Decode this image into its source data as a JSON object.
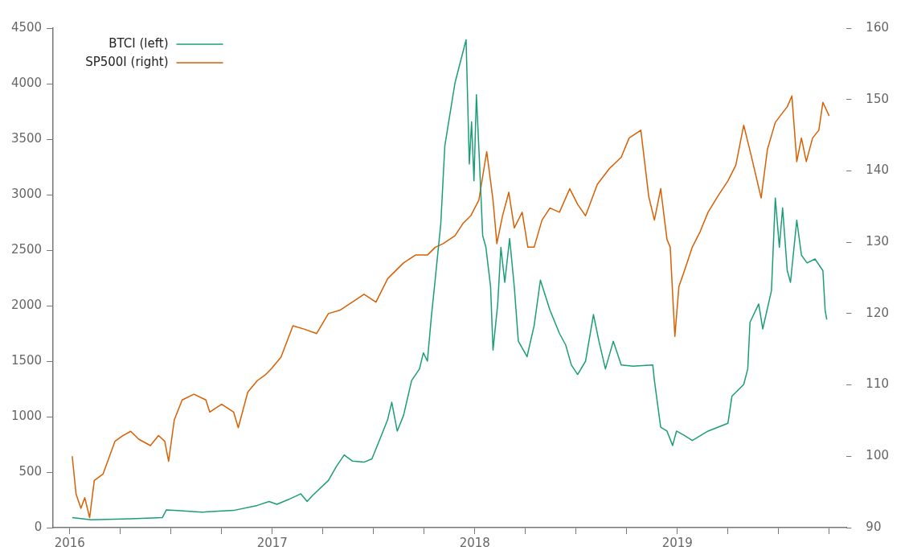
{
  "chart_data": {
    "type": "line",
    "xlim": [
      2015.918,
      2019.836
    ],
    "xticks": [
      2016,
      {
        "value": 2016.25,
        "label": null
      },
      {
        "value": 2016.5,
        "label": null
      },
      {
        "value": 2016.75,
        "label": null
      },
      2017,
      {
        "value": 2017.25,
        "label": null
      },
      {
        "value": 2017.5,
        "label": null
      },
      {
        "value": 2017.75,
        "label": null
      },
      2018,
      {
        "value": 2018.25,
        "label": null
      },
      {
        "value": 2018.5,
        "label": null
      },
      {
        "value": 2018.75,
        "label": null
      },
      2019,
      {
        "value": 2019.25,
        "label": null
      },
      {
        "value": 2019.5,
        "label": null
      },
      {
        "value": 2019.75,
        "label": null
      }
    ],
    "ylim": [
      0,
      4500
    ],
    "yticks": [
      0,
      500,
      1000,
      1500,
      2000,
      2500,
      3000,
      3500,
      4000,
      4500
    ],
    "y2lim": [
      90,
      160
    ],
    "y2ticks": [
      90,
      100,
      110,
      120,
      130,
      140,
      150,
      160
    ],
    "grid": false,
    "legend": "top left",
    "marker": "none",
    "line_style": "solid",
    "series": [
      {
        "name": "BTCI (left)",
        "color": "#1b9e77",
        "x": [
          2016.012,
          2016.105,
          2016.301,
          2016.457,
          2016.477,
          2016.516,
          2016.652,
          2016.809,
          2016.926,
          2016.984,
          2017.023,
          2017.082,
          2017.141,
          2017.172,
          2017.199,
          2017.277,
          2017.316,
          2017.355,
          2017.395,
          2017.453,
          2017.492,
          2017.531,
          2017.57,
          2017.59,
          2017.617,
          2017.648,
          2017.688,
          2017.727,
          2017.746,
          2017.766,
          2017.785,
          2017.805,
          2017.832,
          2017.852,
          2017.902,
          2017.957,
          2017.973,
          2017.984,
          2017.996,
          2018.008,
          2018.023,
          2018.039,
          2018.055,
          2018.078,
          2018.09,
          2018.113,
          2018.129,
          2018.148,
          2018.172,
          2018.195,
          2018.215,
          2018.258,
          2018.293,
          2018.324,
          2018.371,
          2018.418,
          2018.449,
          2018.477,
          2018.508,
          2018.547,
          2018.586,
          2018.613,
          2018.645,
          2018.684,
          2018.723,
          2018.781,
          2018.879,
          2018.887,
          2018.918,
          2018.949,
          2018.977,
          2018.996,
          2019.035,
          2019.074,
          2019.152,
          2019.25,
          2019.27,
          2019.328,
          2019.348,
          2019.359,
          2019.402,
          2019.422,
          2019.465,
          2019.484,
          2019.504,
          2019.52,
          2019.543,
          2019.559,
          2019.59,
          2019.613,
          2019.641,
          2019.68,
          2019.719,
          2019.73,
          2019.738
        ],
        "values": [
          90,
          70,
          80,
          90,
          160,
          155,
          140,
          155,
          200,
          235,
          210,
          255,
          305,
          235,
          290,
          425,
          550,
          655,
          600,
          590,
          620,
          795,
          975,
          1130,
          870,
          1010,
          1325,
          1430,
          1575,
          1500,
          1890,
          2245,
          2735,
          3440,
          4005,
          4395,
          3275,
          3655,
          3125,
          3900,
          3300,
          2630,
          2525,
          2170,
          1600,
          2010,
          2525,
          2210,
          2605,
          2170,
          1680,
          1540,
          1820,
          2230,
          1960,
          1750,
          1645,
          1465,
          1380,
          1500,
          1920,
          1680,
          1430,
          1680,
          1465,
          1455,
          1465,
          1325,
          905,
          870,
          740,
          870,
          830,
          785,
          870,
          940,
          1185,
          1290,
          1430,
          1850,
          2015,
          1790,
          2135,
          2970,
          2525,
          2880,
          2315,
          2210,
          2770,
          2455,
          2385,
          2420,
          2315,
          1960,
          1875
        ]
      },
      {
        "name": "SP500I (right)",
        "color": "#d95f02",
        "axis": "y2",
        "x": [
          2016.012,
          2016.031,
          2016.055,
          2016.074,
          2016.098,
          2016.121,
          2016.164,
          2016.223,
          2016.262,
          2016.301,
          2016.34,
          2016.398,
          2016.438,
          2016.469,
          2016.488,
          2016.516,
          2016.555,
          2016.613,
          2016.672,
          2016.691,
          2016.75,
          2016.809,
          2016.832,
          2016.879,
          2016.926,
          2016.965,
          2016.996,
          2017.043,
          2017.102,
          2017.16,
          2017.219,
          2017.277,
          2017.336,
          2017.395,
          2017.453,
          2017.512,
          2017.57,
          2017.648,
          2017.707,
          2017.766,
          2017.805,
          2017.844,
          2017.902,
          2017.941,
          2017.98,
          2018.02,
          2018.059,
          2018.09,
          2018.109,
          2018.137,
          2018.168,
          2018.195,
          2018.234,
          2018.262,
          2018.293,
          2018.332,
          2018.371,
          2018.418,
          2018.469,
          2018.508,
          2018.547,
          2018.605,
          2018.664,
          2018.723,
          2018.762,
          2018.82,
          2018.859,
          2018.887,
          2018.918,
          2018.949,
          2018.965,
          2018.988,
          2019.008,
          2019.035,
          2019.074,
          2019.113,
          2019.152,
          2019.199,
          2019.25,
          2019.289,
          2019.328,
          2019.367,
          2019.414,
          2019.445,
          2019.484,
          2019.543,
          2019.566,
          2019.59,
          2019.613,
          2019.637,
          2019.668,
          2019.699,
          2019.719,
          2019.75
        ],
        "values": [
          100.0,
          94.7,
          92.7,
          94.2,
          91.4,
          96.6,
          97.5,
          102.1,
          102.9,
          103.5,
          102.4,
          101.5,
          102.9,
          102.1,
          99.3,
          105.1,
          107.9,
          108.7,
          107.9,
          106.2,
          107.3,
          106.2,
          104.0,
          109.0,
          110.6,
          111.4,
          112.3,
          113.9,
          118.3,
          117.8,
          117.2,
          120.0,
          120.5,
          121.6,
          122.7,
          121.6,
          124.9,
          127.1,
          128.2,
          128.2,
          129.3,
          129.8,
          130.9,
          132.6,
          133.7,
          135.9,
          142.7,
          135.9,
          129.8,
          133.7,
          137.0,
          132.0,
          134.2,
          129.3,
          129.3,
          133.1,
          134.8,
          134.2,
          137.5,
          135.3,
          133.7,
          138.1,
          140.3,
          141.9,
          144.6,
          145.7,
          136.4,
          133.1,
          137.5,
          130.4,
          129.3,
          116.8,
          123.8,
          126.0,
          129.3,
          131.5,
          134.2,
          136.4,
          138.6,
          140.8,
          146.4,
          141.9,
          136.2,
          143.0,
          146.8,
          149.0,
          150.5,
          141.3,
          144.6,
          141.3,
          144.6,
          145.7,
          149.6,
          147.7
        ]
      }
    ]
  }
}
